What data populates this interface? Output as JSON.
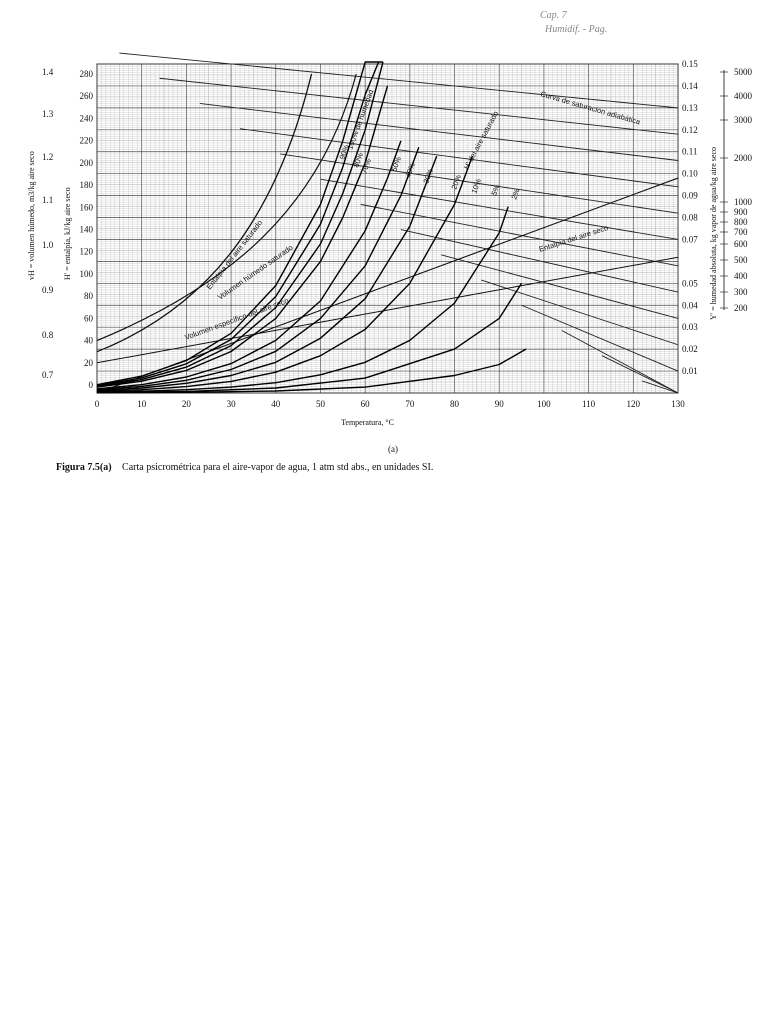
{
  "chart_data": {
    "type": "line",
    "title": "",
    "xlabel": "Temperatura, °C",
    "x_ticks": [
      0,
      10,
      20,
      30,
      40,
      50,
      60,
      70,
      80,
      90,
      100,
      110,
      120,
      130
    ],
    "xlim": [
      0,
      130
    ],
    "y_right_label": "Y' = humedad absoluta, kg vapor de agua/kg aire seco",
    "y_right_ticks": [
      0.01,
      0.02,
      0.03,
      0.04,
      0.05,
      0.07,
      0.08,
      0.09,
      0.1,
      0.11,
      0.12,
      0.13,
      0.14,
      0.15
    ],
    "y_right_lim": [
      0,
      0.15
    ],
    "y_left_inner_label": "H' = entalpía, kJ/kg aire seco",
    "y_left_inner_ticks": [
      0,
      20,
      40,
      60,
      80,
      100,
      120,
      140,
      160,
      180,
      200,
      220,
      240,
      260,
      280
    ],
    "y_left_outer_label": "vH = volumen húmedo, m3/kg aire seco",
    "y_left_outer_ticks": [
      "0.7",
      "0.8",
      "0.9",
      "1.0",
      "1.1",
      "1.2",
      "1.3",
      "1.4"
    ],
    "far_right_ticks": [
      "5000",
      "4000",
      "3000",
      "2000",
      "1000",
      "900",
      "800",
      "700",
      "600",
      "500",
      "400",
      "300",
      "200"
    ],
    "grid": true,
    "series": [
      {
        "name": "100% de humedad",
        "x": [
          0,
          10,
          20,
          30,
          40,
          50,
          55,
          60,
          62,
          64
        ],
        "y": [
          0.0038,
          0.0077,
          0.0148,
          0.0272,
          0.049,
          0.086,
          0.115,
          0.152,
          0.17,
          0.19
        ]
      },
      {
        "name": "90%",
        "x": [
          0,
          10,
          20,
          30,
          40,
          50,
          55,
          60,
          63
        ],
        "y": [
          0.0034,
          0.0069,
          0.0133,
          0.0244,
          0.044,
          0.077,
          0.103,
          0.136,
          0.16
        ]
      },
      {
        "name": "80%",
        "x": [
          0,
          10,
          20,
          30,
          40,
          50,
          55,
          60,
          64
        ],
        "y": [
          0.003,
          0.0061,
          0.0118,
          0.0216,
          0.039,
          0.068,
          0.091,
          0.12,
          0.152
        ]
      },
      {
        "name": "70%",
        "x": [
          0,
          10,
          20,
          30,
          40,
          50,
          55,
          60,
          65
        ],
        "y": [
          0.0027,
          0.0054,
          0.0103,
          0.0189,
          0.034,
          0.06,
          0.08,
          0.105,
          0.14
        ]
      },
      {
        "name": "50%",
        "x": [
          0,
          10,
          20,
          30,
          40,
          50,
          60,
          65,
          68
        ],
        "y": [
          0.0019,
          0.0038,
          0.0073,
          0.0134,
          0.024,
          0.042,
          0.074,
          0.098,
          0.115
        ]
      },
      {
        "name": "40%",
        "x": [
          0,
          10,
          20,
          30,
          40,
          50,
          60,
          68,
          72
        ],
        "y": [
          0.0015,
          0.003,
          0.0058,
          0.0107,
          0.019,
          0.034,
          0.058,
          0.09,
          0.112
        ]
      },
      {
        "name": "30%",
        "x": [
          0,
          10,
          20,
          30,
          40,
          50,
          60,
          70,
          76
        ],
        "y": [
          0.0011,
          0.0023,
          0.0044,
          0.008,
          0.014,
          0.025,
          0.043,
          0.076,
          0.108
        ]
      },
      {
        "name": "20%",
        "x": [
          0,
          10,
          20,
          30,
          40,
          50,
          60,
          70,
          80,
          84
        ],
        "y": [
          0.0008,
          0.0015,
          0.0029,
          0.0053,
          0.0095,
          0.017,
          0.029,
          0.05,
          0.086,
          0.108
        ]
      },
      {
        "name": "10%",
        "x": [
          0,
          10,
          20,
          30,
          40,
          50,
          60,
          70,
          80,
          90,
          92
        ],
        "y": [
          0.0004,
          0.0008,
          0.0015,
          0.0027,
          0.0047,
          0.0083,
          0.014,
          0.024,
          0.041,
          0.073,
          0.085
        ]
      },
      {
        "name": "5%",
        "x": [
          0,
          20,
          40,
          60,
          80,
          90,
          95
        ],
        "y": [
          0.0002,
          0.0007,
          0.0023,
          0.0068,
          0.02,
          0.034,
          0.05
        ]
      },
      {
        "name": "2%",
        "x": [
          0,
          20,
          40,
          60,
          80,
          90,
          96
        ],
        "y": [
          0.0001,
          0.0003,
          0.0009,
          0.0027,
          0.008,
          0.013,
          0.02
        ]
      }
    ],
    "annotations": [
      "Entalpía del aire saturado",
      "Volumen húmedo saturado",
      "Volumen específico del aire seco",
      "Curva de saturación adiabática",
      "H' del aire saturado",
      "Entalpía del aire seco"
    ],
    "panel_label": "(a)",
    "caption_label": "Figura 7.5(a)",
    "caption_text": "Carta psicrométrica para el aire-vapor de agua, 1 atm std abs., en unidades SI."
  },
  "annotations_handwritten": [
    "Cap. 7",
    "Humidif. - Pag."
  ]
}
